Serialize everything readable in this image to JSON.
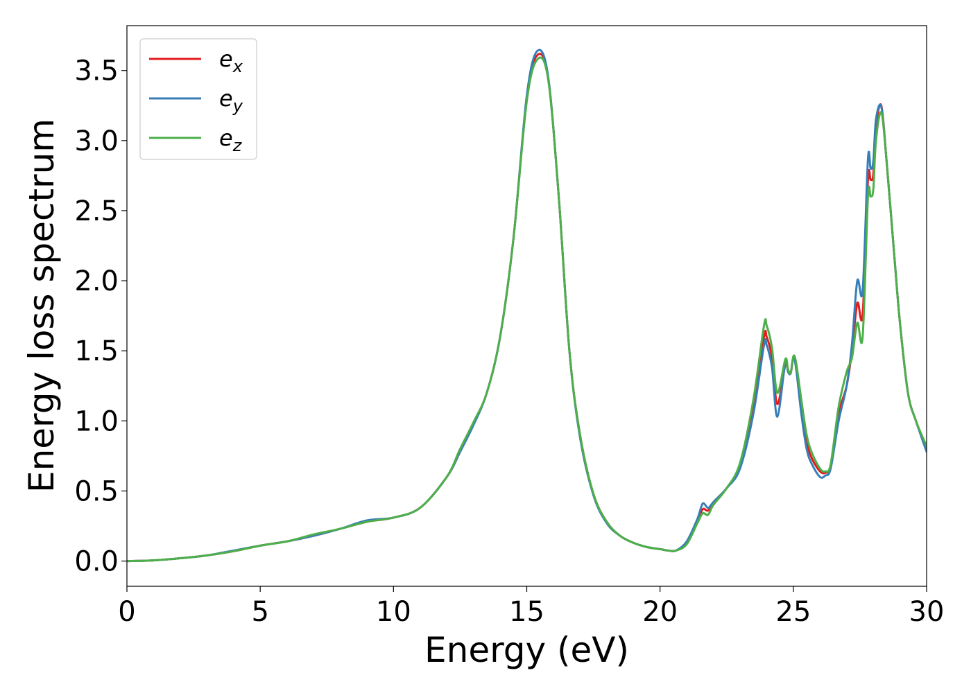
{
  "chart_data": {
    "type": "line",
    "title": "",
    "xlabel": "Energy (eV)",
    "ylabel": "Energy loss spectrum",
    "xlim": [
      0,
      30
    ],
    "ylim": [
      -0.18,
      3.82
    ],
    "xticks": [
      0,
      5,
      10,
      15,
      20,
      25,
      30
    ],
    "xtick_labels": [
      "0",
      "5",
      "10",
      "15",
      "20",
      "25",
      "30"
    ],
    "yticks": [
      0.0,
      0.5,
      1.0,
      1.5,
      2.0,
      2.5,
      3.0,
      3.5
    ],
    "ytick_labels": [
      "0.0",
      "0.5",
      "1.0",
      "1.5",
      "2.0",
      "2.5",
      "3.0",
      "3.5"
    ],
    "grid": false,
    "legend_position": "top-left",
    "series": [
      {
        "name": "e_x",
        "legend_base": "e",
        "legend_sub": "x",
        "color": "#e41a1c",
        "x": [
          0,
          1,
          2,
          3,
          4,
          5,
          6,
          7,
          8,
          9,
          10,
          11,
          12,
          12.5,
          13,
          13.5,
          14,
          14.5,
          15,
          15.4,
          15.8,
          16.2,
          16.6,
          17,
          17.5,
          18,
          18.5,
          19,
          19.5,
          20,
          20.3,
          20.6,
          21,
          21.4,
          21.6,
          21.8,
          22,
          22.5,
          23,
          23.5,
          23.9,
          24,
          24.2,
          24.4,
          24.7,
          24.8,
          24.9,
          25,
          25.1,
          25.3,
          25.5,
          25.7,
          26,
          26.2,
          26.4,
          26.7,
          27,
          27.2,
          27.4,
          27.6,
          27.8,
          27.9,
          28,
          28.1,
          28.3,
          28.5,
          28.8,
          29,
          29.3,
          29.6,
          30
        ],
        "y": [
          0.0,
          0.005,
          0.02,
          0.04,
          0.07,
          0.11,
          0.14,
          0.18,
          0.23,
          0.28,
          0.31,
          0.38,
          0.6,
          0.78,
          0.98,
          1.2,
          1.6,
          2.3,
          3.3,
          3.61,
          3.45,
          2.6,
          1.5,
          0.9,
          0.48,
          0.28,
          0.18,
          0.13,
          0.1,
          0.085,
          0.075,
          0.075,
          0.13,
          0.28,
          0.37,
          0.36,
          0.42,
          0.52,
          0.68,
          1.1,
          1.6,
          1.6,
          1.45,
          1.12,
          1.4,
          1.36,
          1.34,
          1.45,
          1.4,
          1.1,
          0.85,
          0.73,
          0.64,
          0.63,
          0.68,
          1.05,
          1.25,
          1.5,
          1.84,
          1.76,
          2.72,
          2.72,
          2.76,
          3.1,
          3.25,
          2.85,
          2.15,
          1.7,
          1.2,
          1.0,
          0.8
        ]
      },
      {
        "name": "e_y",
        "legend_base": "e",
        "legend_sub": "y",
        "color": "#377eb8",
        "x": [
          0,
          1,
          2,
          3,
          4,
          5,
          6,
          7,
          8,
          9,
          10,
          11,
          12,
          12.5,
          13,
          13.5,
          14,
          14.5,
          15,
          15.4,
          15.8,
          16.2,
          16.6,
          17,
          17.5,
          18,
          18.5,
          19,
          19.5,
          20,
          20.3,
          20.6,
          21,
          21.4,
          21.6,
          21.8,
          22,
          22.5,
          23,
          23.5,
          23.9,
          24,
          24.2,
          24.4,
          24.7,
          24.8,
          24.9,
          25,
          25.1,
          25.3,
          25.5,
          25.7,
          26,
          26.2,
          26.4,
          26.7,
          27,
          27.2,
          27.4,
          27.6,
          27.8,
          27.9,
          28,
          28.1,
          28.3,
          28.5,
          28.8,
          29,
          29.3,
          29.6,
          30
        ],
        "y": [
          0.0,
          0.005,
          0.02,
          0.04,
          0.075,
          0.11,
          0.14,
          0.18,
          0.23,
          0.29,
          0.31,
          0.38,
          0.6,
          0.78,
          0.97,
          1.2,
          1.6,
          2.3,
          3.32,
          3.64,
          3.46,
          2.6,
          1.5,
          0.88,
          0.47,
          0.27,
          0.18,
          0.13,
          0.1,
          0.085,
          0.075,
          0.075,
          0.14,
          0.3,
          0.41,
          0.38,
          0.42,
          0.52,
          0.66,
          1.05,
          1.54,
          1.54,
          1.38,
          1.03,
          1.42,
          1.35,
          1.34,
          1.45,
          1.38,
          1.05,
          0.8,
          0.69,
          0.6,
          0.61,
          0.66,
          1.0,
          1.25,
          1.55,
          2.0,
          1.93,
          2.87,
          2.8,
          2.85,
          3.15,
          3.24,
          2.85,
          2.15,
          1.7,
          1.2,
          1.0,
          0.78
        ]
      },
      {
        "name": "e_z",
        "legend_base": "e",
        "legend_sub": "z",
        "color": "#4daf4a",
        "x": [
          0,
          1,
          2,
          3,
          4,
          5,
          6,
          7,
          8,
          9,
          10,
          11,
          12,
          12.5,
          13,
          13.5,
          14,
          14.5,
          15,
          15.4,
          15.8,
          16.2,
          16.6,
          17,
          17.5,
          18,
          18.5,
          19,
          19.5,
          20,
          20.3,
          20.6,
          21,
          21.4,
          21.6,
          21.8,
          22,
          22.5,
          23,
          23.5,
          23.9,
          24,
          24.2,
          24.4,
          24.7,
          24.8,
          24.9,
          25,
          25.1,
          25.3,
          25.5,
          25.7,
          26,
          26.2,
          26.4,
          26.7,
          27,
          27.2,
          27.4,
          27.6,
          27.8,
          27.9,
          28,
          28.1,
          28.3,
          28.5,
          28.8,
          29,
          29.3,
          29.6,
          30
        ],
        "y": [
          0.0,
          0.005,
          0.02,
          0.04,
          0.07,
          0.11,
          0.14,
          0.19,
          0.23,
          0.28,
          0.31,
          0.38,
          0.6,
          0.8,
          0.99,
          1.2,
          1.6,
          2.3,
          3.28,
          3.58,
          3.44,
          2.6,
          1.5,
          0.9,
          0.48,
          0.28,
          0.18,
          0.13,
          0.1,
          0.085,
          0.075,
          0.075,
          0.12,
          0.27,
          0.34,
          0.33,
          0.4,
          0.52,
          0.7,
          1.15,
          1.68,
          1.68,
          1.52,
          1.2,
          1.44,
          1.37,
          1.34,
          1.46,
          1.42,
          1.15,
          0.9,
          0.77,
          0.66,
          0.64,
          0.69,
          1.1,
          1.35,
          1.45,
          1.7,
          1.6,
          2.6,
          2.6,
          2.65,
          3.0,
          3.2,
          2.85,
          2.15,
          1.7,
          1.2,
          1.0,
          0.82
        ]
      }
    ]
  }
}
